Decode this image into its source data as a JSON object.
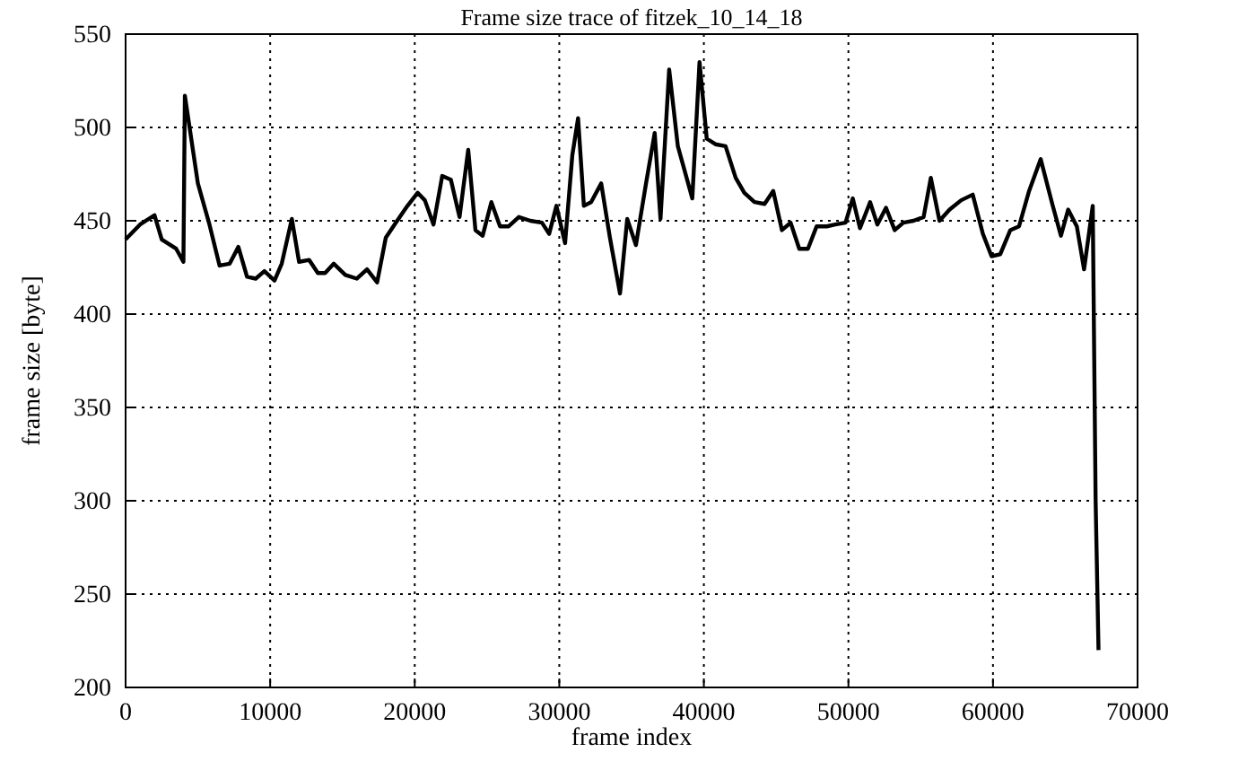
{
  "chart_data": {
    "type": "line",
    "title": "Frame size trace of fitzek_10_14_18",
    "xlabel": "frame index",
    "ylabel": "frame size [byte]",
    "xlim": [
      0,
      70000
    ],
    "xticks": [
      0,
      10000,
      20000,
      30000,
      40000,
      50000,
      60000,
      70000
    ],
    "ylim": [
      200,
      550
    ],
    "yticks": [
      200,
      250,
      300,
      350,
      400,
      450,
      500,
      550
    ],
    "grid": true,
    "series": [
      {
        "color": "#000000",
        "x": [
          0,
          1000,
          2000,
          2500,
          3500,
          4000,
          4100,
          5000,
          5800,
          6500,
          7200,
          7800,
          8400,
          9000,
          9600,
          10300,
          10800,
          11500,
          12000,
          12700,
          13300,
          13800,
          14400,
          15200,
          16000,
          16700,
          17400,
          18000,
          18700,
          19500,
          20200,
          20700,
          21300,
          21900,
          22500,
          23100,
          23700,
          24200,
          24700,
          25300,
          25900,
          26500,
          27200,
          28000,
          28800,
          29300,
          29800,
          30400,
          30900,
          31300,
          31700,
          32200,
          32900,
          33500,
          34200,
          34700,
          35300,
          36000,
          36600,
          37000,
          37600,
          38200,
          39200,
          39700,
          40200,
          40800,
          41500,
          42200,
          42800,
          43500,
          44200,
          44800,
          45400,
          46000,
          46600,
          47200,
          47800,
          48500,
          49100,
          49800,
          50300,
          50800,
          51500,
          52000,
          52600,
          53200,
          53800,
          54500,
          55200,
          55700,
          56300,
          57000,
          57800,
          58600,
          59300,
          59900,
          60500,
          61200,
          61800,
          62500,
          63300,
          64100,
          64700,
          65200,
          65800,
          66300,
          66900,
          67100,
          67300
        ],
        "values": [
          440,
          448,
          453,
          440,
          435,
          428,
          517,
          470,
          448,
          426,
          427,
          436,
          420,
          419,
          423,
          418,
          427,
          451,
          428,
          429,
          422,
          422,
          427,
          421,
          419,
          424,
          417,
          441,
          449,
          458,
          465,
          461,
          448,
          474,
          472,
          452,
          488,
          445,
          442,
          460,
          447,
          447,
          452,
          450,
          449,
          443,
          458,
          438,
          485,
          505,
          458,
          460,
          470,
          441,
          411,
          451,
          437,
          470,
          497,
          451,
          531,
          490,
          462,
          535,
          494,
          491,
          490,
          473,
          465,
          460,
          459,
          466,
          445,
          449,
          435,
          435,
          447,
          447,
          448,
          449,
          462,
          446,
          460,
          448,
          457,
          445,
          449,
          450,
          452,
          473,
          450,
          456,
          461,
          464,
          443,
          431,
          432,
          445,
          447,
          466,
          483,
          459,
          442,
          456,
          447,
          424,
          458,
          300,
          220
        ]
      }
    ]
  }
}
